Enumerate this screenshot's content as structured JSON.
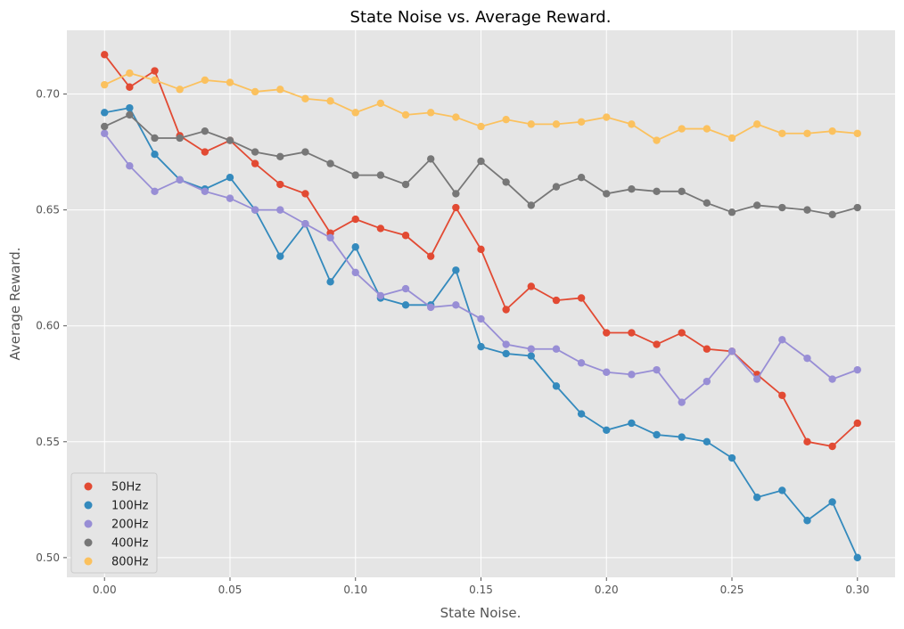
{
  "chart_data": {
    "type": "line",
    "title": "State Noise vs. Average Reward.",
    "xlabel": "State Noise.",
    "ylabel": "Average Reward.",
    "xlim": [
      -0.015,
      0.315
    ],
    "ylim": [
      0.4915,
      0.7275
    ],
    "xticks": [
      0.0,
      0.05,
      0.1,
      0.15,
      0.2,
      0.25,
      0.3
    ],
    "xtick_labels": [
      "0.00",
      "0.05",
      "0.10",
      "0.15",
      "0.20",
      "0.25",
      "0.30"
    ],
    "yticks": [
      0.5,
      0.55,
      0.6,
      0.65,
      0.7
    ],
    "ytick_labels": [
      "0.50",
      "0.55",
      "0.60",
      "0.65",
      "0.70"
    ],
    "grid": true,
    "legend_position": "bottom-left",
    "background": "#e5e5e5",
    "x": [
      0.0,
      0.01,
      0.02,
      0.03,
      0.04,
      0.05,
      0.06,
      0.07,
      0.08,
      0.09,
      0.1,
      0.11,
      0.12,
      0.13,
      0.14,
      0.15,
      0.16,
      0.17,
      0.18,
      0.19,
      0.2,
      0.21,
      0.22,
      0.23,
      0.24,
      0.25,
      0.26,
      0.27,
      0.28,
      0.29,
      0.3
    ],
    "series": [
      {
        "name": "50Hz",
        "color": "#e24a33",
        "values": [
          0.717,
          0.703,
          0.71,
          0.682,
          0.675,
          0.68,
          0.67,
          0.661,
          0.657,
          0.64,
          0.646,
          0.642,
          0.639,
          0.63,
          0.651,
          0.633,
          0.607,
          0.617,
          0.611,
          0.612,
          0.597,
          0.597,
          0.592,
          0.597,
          0.59,
          0.589,
          0.579,
          0.57,
          0.55,
          0.548,
          0.558
        ]
      },
      {
        "name": "100Hz",
        "color": "#348abd",
        "values": [
          0.692,
          0.694,
          0.674,
          0.663,
          0.659,
          0.664,
          0.65,
          0.63,
          0.644,
          0.619,
          0.634,
          0.612,
          0.609,
          0.609,
          0.624,
          0.591,
          0.588,
          0.587,
          0.574,
          0.562,
          0.555,
          0.558,
          0.553,
          0.552,
          0.55,
          0.543,
          0.526,
          0.529,
          0.516,
          0.524,
          0.5
        ]
      },
      {
        "name": "200Hz",
        "color": "#988ed5",
        "values": [
          0.683,
          0.669,
          0.658,
          0.663,
          0.658,
          0.655,
          0.65,
          0.65,
          0.644,
          0.638,
          0.623,
          0.613,
          0.616,
          0.608,
          0.609,
          0.603,
          0.592,
          0.59,
          0.59,
          0.584,
          0.58,
          0.579,
          0.581,
          0.567,
          0.576,
          0.589,
          0.577,
          0.594,
          0.586,
          0.577,
          0.581
        ]
      },
      {
        "name": "400Hz",
        "color": "#777777",
        "values": [
          0.686,
          0.691,
          0.681,
          0.681,
          0.684,
          0.68,
          0.675,
          0.673,
          0.675,
          0.67,
          0.665,
          0.665,
          0.661,
          0.672,
          0.657,
          0.671,
          0.662,
          0.652,
          0.66,
          0.664,
          0.657,
          0.659,
          0.658,
          0.658,
          0.653,
          0.649,
          0.652,
          0.651,
          0.65,
          0.648,
          0.651
        ]
      },
      {
        "name": "800Hz",
        "color": "#fbc15e",
        "values": [
          0.704,
          0.709,
          0.706,
          0.702,
          0.706,
          0.705,
          0.701,
          0.702,
          0.698,
          0.697,
          0.692,
          0.696,
          0.691,
          0.692,
          0.69,
          0.686,
          0.689,
          0.687,
          0.687,
          0.688,
          0.69,
          0.687,
          0.68,
          0.685,
          0.685,
          0.681,
          0.687,
          0.683,
          0.683,
          0.684,
          0.683
        ]
      }
    ]
  }
}
